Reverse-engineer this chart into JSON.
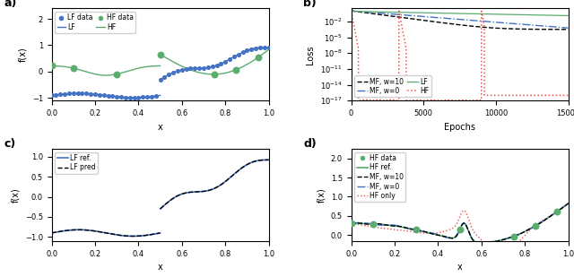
{
  "lf_color": "#4472C4",
  "hf_color": "#5BAD6F",
  "mf_w10_color": "black",
  "mf_w0_color": "#4472C4",
  "hf_only_color": "#E8534A",
  "xlabel": "x",
  "ylabel_fx": "f(x)",
  "ylabel_loss": "Loss",
  "xlabel_epochs": "Epochs",
  "ylim_a": [
    -1.1,
    2.4
  ],
  "ylim_c": [
    -1.1,
    1.2
  ],
  "ylim_d": [
    -0.15,
    2.25
  ],
  "epochs_max": 15000
}
